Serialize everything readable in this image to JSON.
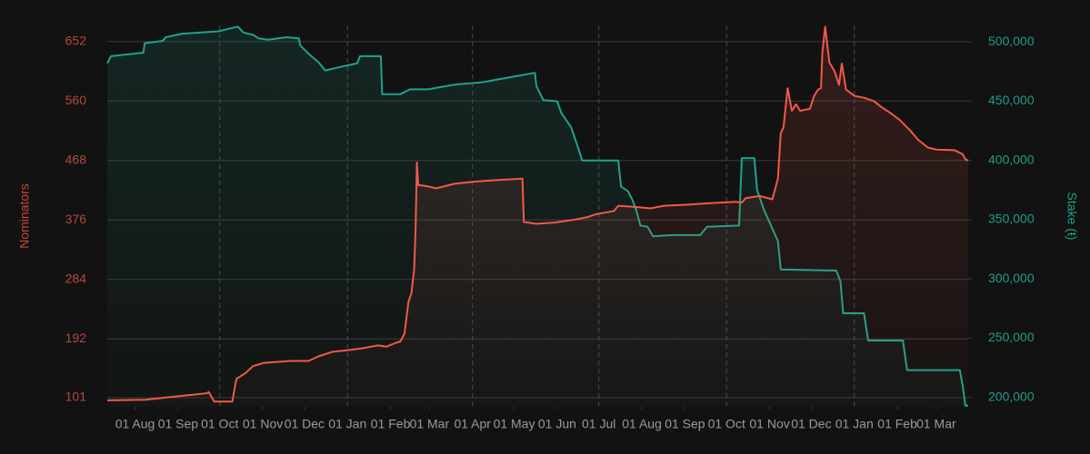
{
  "chart_data": {
    "type": "line",
    "ylabel": "Nominators",
    "y2label": "Stake (ŧ)",
    "xlim": [
      0,
      620
    ],
    "xticks": [
      {
        "value": 20,
        "label": "01 Aug"
      },
      {
        "value": 51,
        "label": "01 Sep"
      },
      {
        "value": 81,
        "label": "01 Oct"
      },
      {
        "value": 112,
        "label": "01 Nov"
      },
      {
        "value": 142,
        "label": "01 Dec"
      },
      {
        "value": 173,
        "label": "01 Jan"
      },
      {
        "value": 204,
        "label": "01 Feb"
      },
      {
        "value": 232,
        "label": "01 Mar"
      },
      {
        "value": 263,
        "label": "01 Apr"
      },
      {
        "value": 293,
        "label": "01 May"
      },
      {
        "value": 324,
        "label": "01 Jun"
      },
      {
        "value": 354,
        "label": "01 Jul"
      },
      {
        "value": 385,
        "label": "01 Aug"
      },
      {
        "value": 416,
        "label": "01 Sep"
      },
      {
        "value": 446,
        "label": "01 Oct"
      },
      {
        "value": 477,
        "label": "01 Nov"
      },
      {
        "value": 507,
        "label": "01 Dec"
      },
      {
        "value": 538,
        "label": "01 Jan"
      },
      {
        "value": 569,
        "label": "01 Feb"
      },
      {
        "value": 597,
        "label": "01 Mar"
      }
    ],
    "ylim": [
      87,
      677
    ],
    "yticks": [
      101,
      192,
      284,
      376,
      468,
      560,
      652
    ],
    "y2lim": [
      192000,
      514000
    ],
    "y2ticks": [
      {
        "value": 200000,
        "label": "200,000"
      },
      {
        "value": 250000,
        "label": "250,000"
      },
      {
        "value": 300000,
        "label": "300,000"
      },
      {
        "value": 350000,
        "label": "350,000"
      },
      {
        "value": 400000,
        "label": "400,000"
      },
      {
        "value": 450000,
        "label": "450,000"
      },
      {
        "value": 500000,
        "label": "500,000"
      }
    ],
    "grid": true,
    "series": [
      {
        "color": "#1fa38c",
        "axis": "y2",
        "x": [
          0,
          2.6,
          26,
          27,
          40,
          42,
          54,
          80,
          94,
          98,
          105,
          109,
          116,
          129,
          138,
          139,
          146,
          152,
          157,
          168,
          180,
          182,
          197,
          198,
          211,
          218,
          231,
          250,
          270,
          289,
          308,
          309,
          314,
          324,
          327,
          334,
          339,
          342,
          368,
          370,
          375,
          378,
          381,
          384,
          389,
          393,
          407,
          427,
          432,
          455,
          457,
          466,
          468,
          473,
          478,
          483,
          485,
          525,
          528,
          530,
          545,
          548,
          573,
          576,
          614,
          616,
          618,
          620
        ],
        "values": [
          482000,
          488000,
          491000,
          499000,
          501000,
          504000,
          507000,
          509000,
          513000,
          508000,
          506000,
          503000,
          502000,
          504000,
          503000,
          497000,
          489000,
          483000,
          476000,
          479000,
          482000,
          488000,
          488000,
          456000,
          456000,
          460000,
          460000,
          464000,
          466000,
          470000,
          474000,
          463000,
          451000,
          450000,
          440000,
          428000,
          411000,
          400000,
          400000,
          378000,
          374000,
          367000,
          358000,
          345000,
          344000,
          336000,
          337000,
          337000,
          344000,
          345000,
          402000,
          402000,
          375000,
          358000,
          345000,
          332000,
          308000,
          307000,
          298000,
          271000,
          271000,
          248000,
          248000,
          223000,
          223000,
          210000,
          193000,
          193000
        ]
      },
      {
        "color": "#f0594b",
        "axis": "y",
        "x": [
          0,
          27.5,
          54,
          72,
          73,
          77,
          90,
          93,
          100,
          105,
          113,
          132,
          145,
          152,
          162,
          175,
          185,
          195,
          201,
          208,
          211,
          214,
          217,
          219,
          221,
          222,
          223,
          224,
          231,
          237,
          250,
          263,
          276,
          299,
          300,
          309,
          322,
          335,
          345,
          352,
          360,
          365,
          368,
          381,
          391,
          401,
          420,
          434,
          453,
          457,
          460,
          470,
          479,
          483,
          485,
          487,
          490,
          493,
          496,
          499,
          506,
          509,
          512,
          514,
          515,
          517,
          520,
          524,
          527,
          529,
          532,
          538,
          545,
          552,
          558,
          565,
          571,
          578,
          584,
          591,
          597,
          610,
          616,
          618,
          620
        ],
        "values": [
          97,
          98,
          104,
          108,
          110,
          95,
          95,
          130,
          140,
          150,
          155,
          158,
          158,
          165,
          172,
          175,
          178,
          182,
          180,
          186,
          188,
          200,
          250,
          262,
          300,
          360,
          465,
          430,
          428,
          425,
          432,
          435,
          437,
          440,
          373,
          370,
          372,
          376,
          380,
          385,
          388,
          390,
          398,
          396,
          394,
          398,
          400,
          402,
          404,
          403,
          410,
          413,
          408,
          440,
          510,
          520,
          580,
          545,
          555,
          545,
          548,
          568,
          578,
          580,
          635,
          675,
          620,
          605,
          585,
          618,
          578,
          568,
          565,
          560,
          550,
          540,
          530,
          515,
          500,
          488,
          485,
          484,
          478,
          470,
          468
        ]
      }
    ]
  }
}
